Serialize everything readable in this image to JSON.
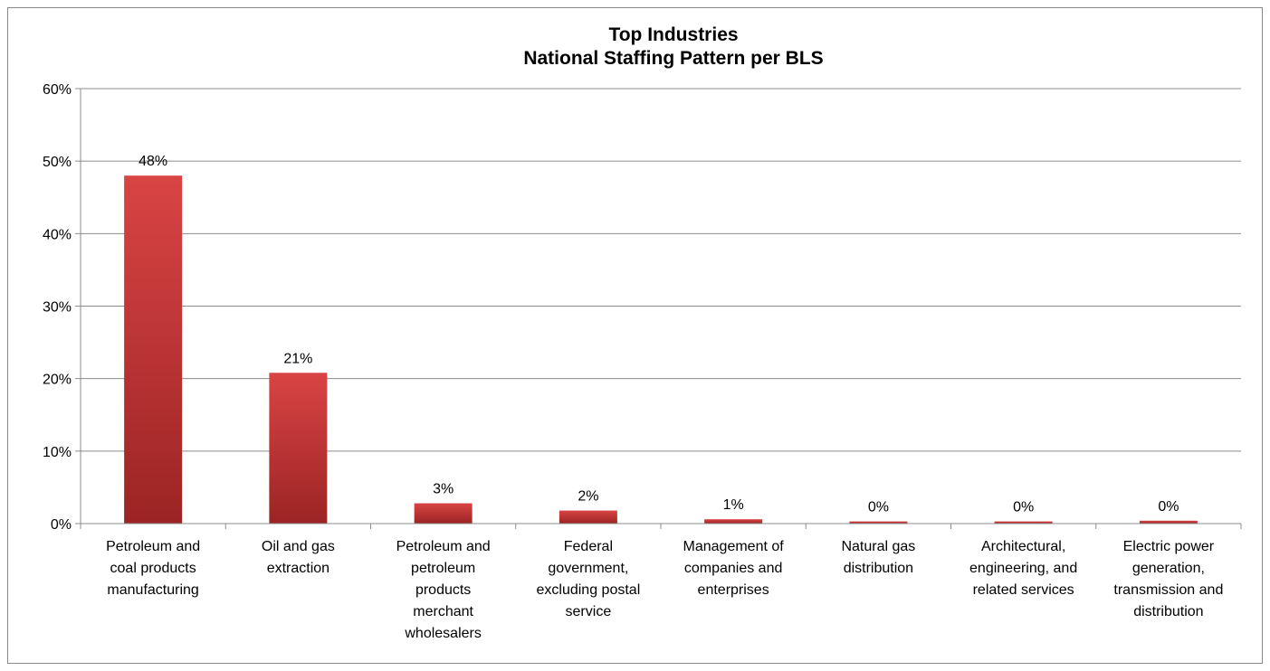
{
  "chart_data": {
    "type": "bar",
    "title_lines": [
      "Top Industries",
      "National Staffing Pattern per BLS"
    ],
    "categories": [
      [
        "Petroleum and",
        "coal products",
        "manufacturing"
      ],
      [
        "Oil and gas",
        "extraction"
      ],
      [
        "Petroleum and",
        "petroleum",
        "products",
        "merchant",
        "wholesalers"
      ],
      [
        "Federal",
        "government,",
        "excluding postal",
        "service"
      ],
      [
        "Management of",
        "companies and",
        "enterprises"
      ],
      [
        "Natural gas",
        "distribution"
      ],
      [
        "Architectural,",
        "engineering, and",
        "related services"
      ],
      [
        "Electric power",
        "generation,",
        "transmission and",
        "distribution"
      ]
    ],
    "values": [
      48.0,
      20.8,
      2.8,
      1.8,
      0.6,
      0.3,
      0.3,
      0.4
    ],
    "data_labels": [
      "48%",
      "21%",
      "3%",
      "2%",
      "1%",
      "0%",
      "0%",
      "0%"
    ],
    "y_ticks": [
      "0%",
      "10%",
      "20%",
      "30%",
      "40%",
      "50%",
      "60%"
    ],
    "ylim": [
      0,
      60
    ],
    "grid": true,
    "legend": "none",
    "colors": {
      "bar_top": "#d94444",
      "bar_bottom": "#9c2424",
      "grid": "#8c8c8c",
      "axis": "#8c8c8c"
    }
  }
}
